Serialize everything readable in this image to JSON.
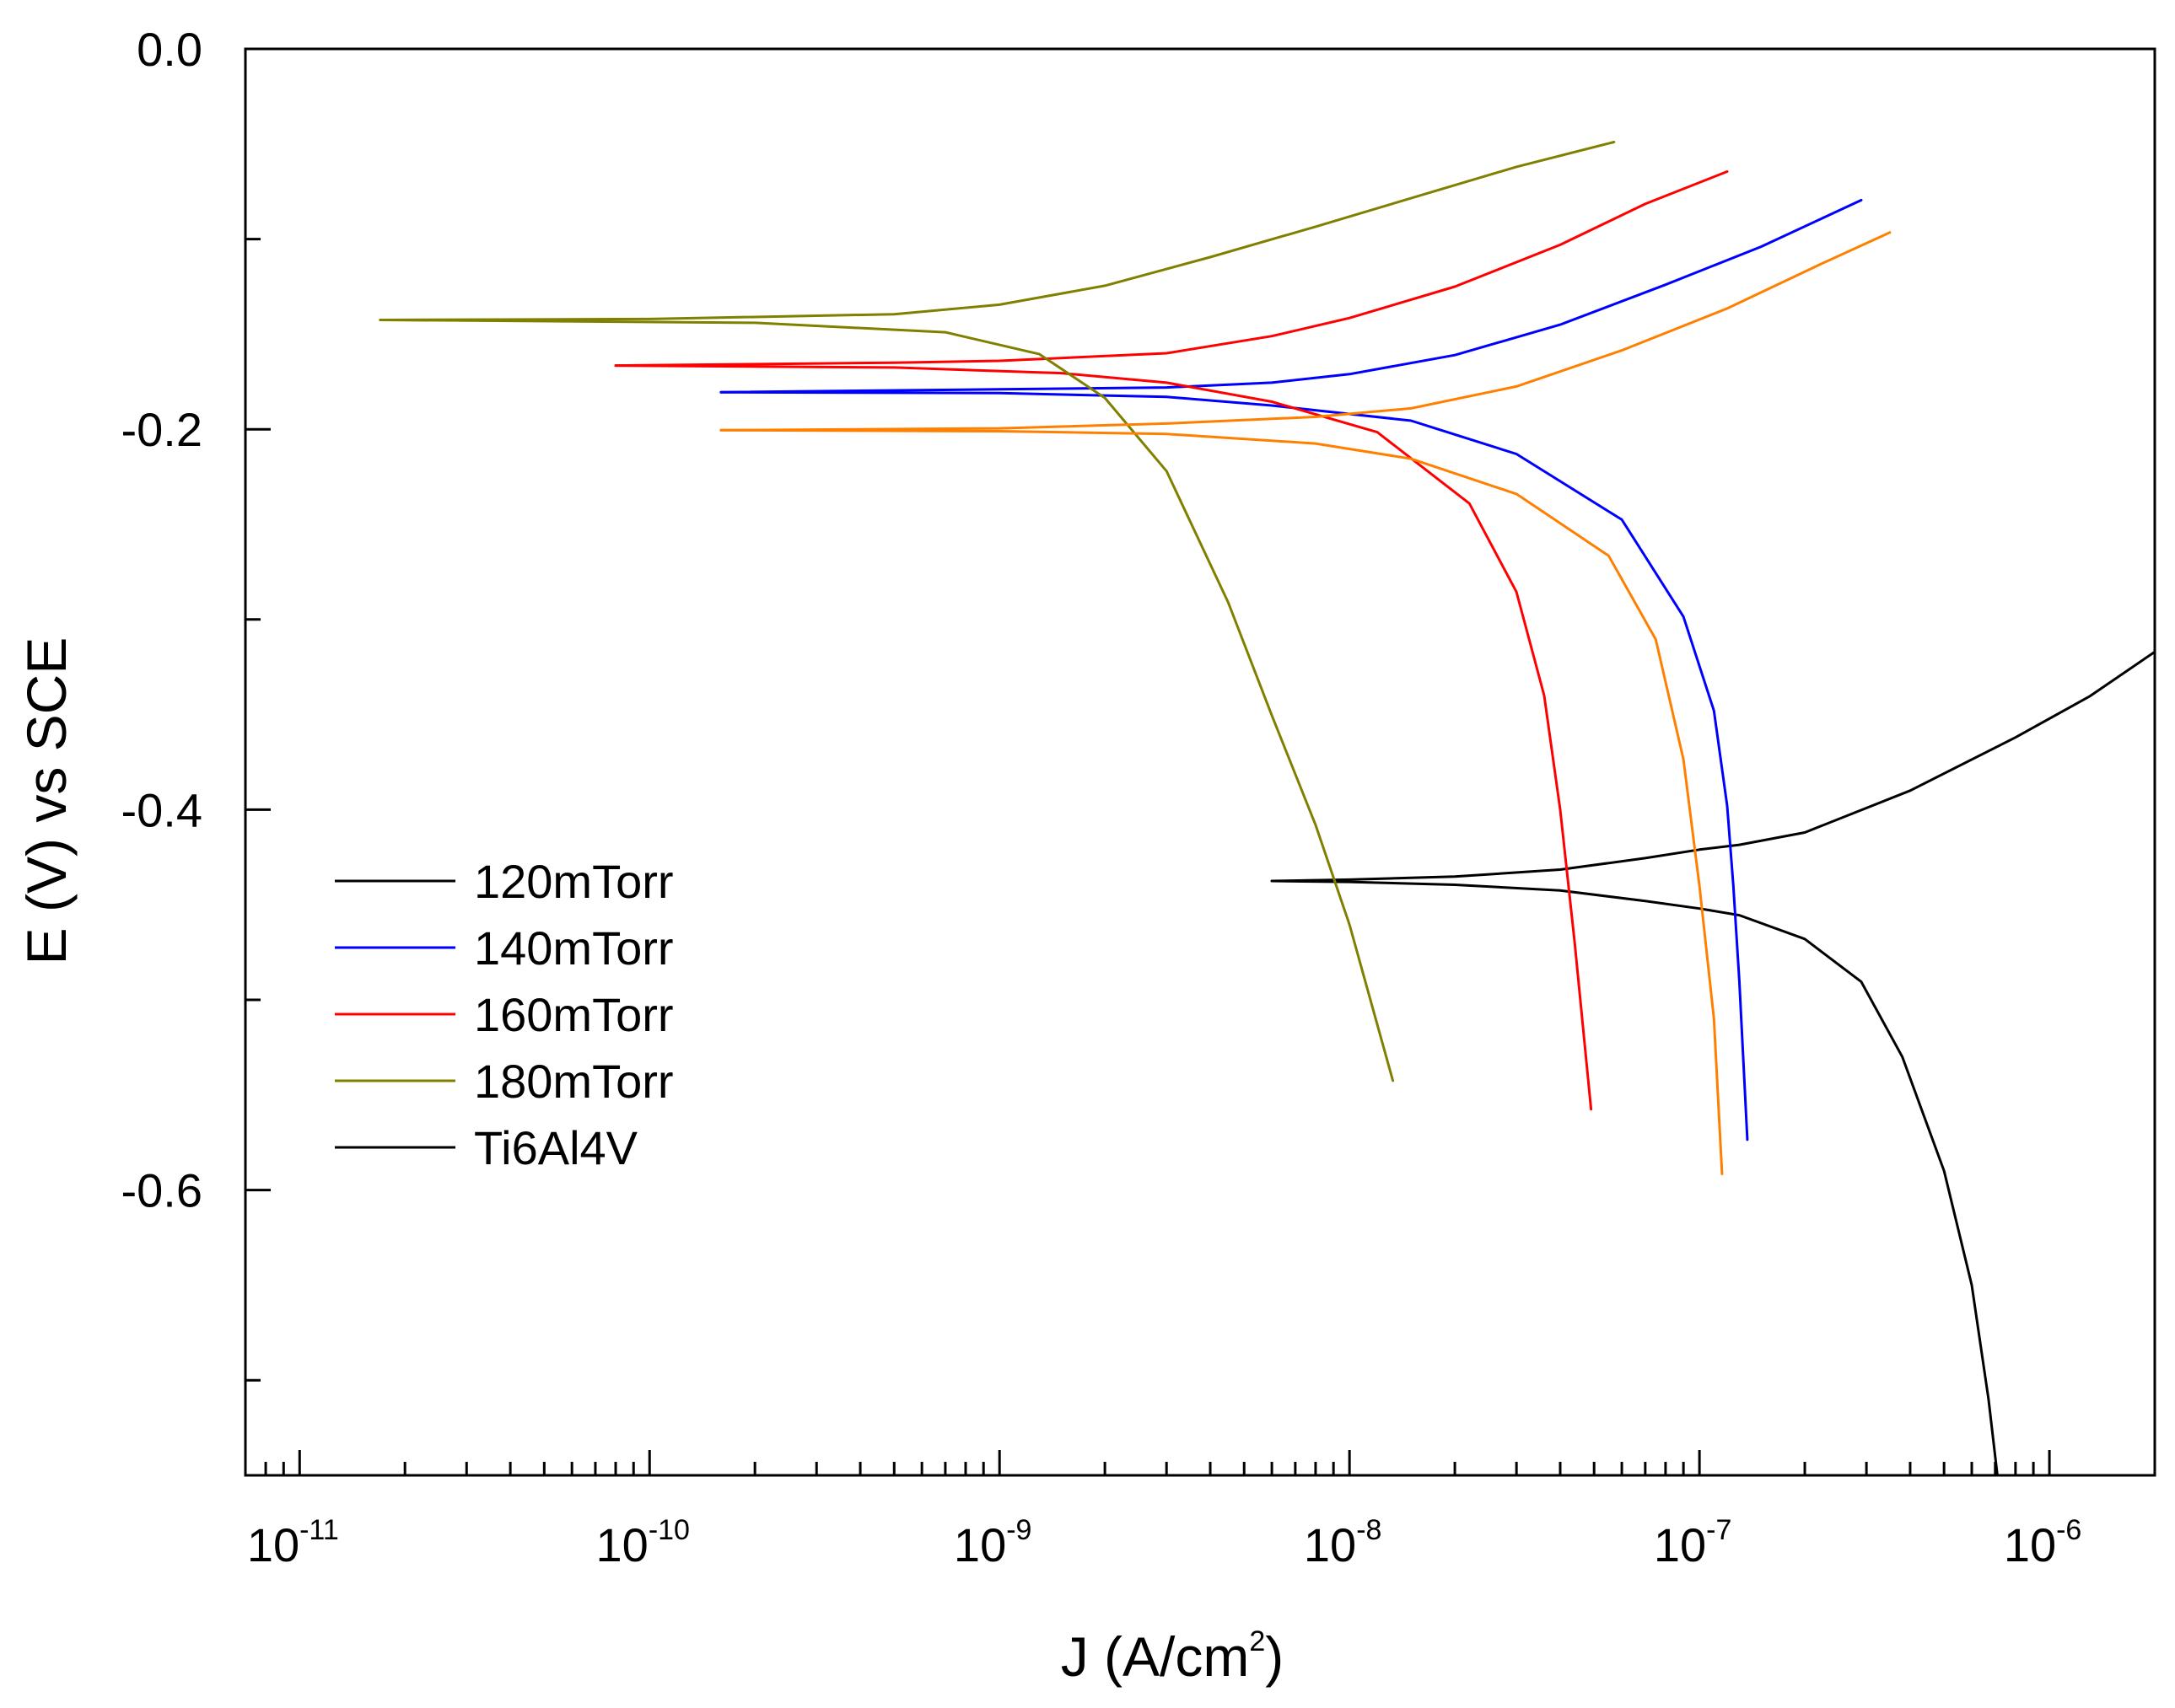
{
  "chart_data": {
    "type": "line",
    "title": "",
    "xlabel": "J (A/cm",
    "xlabel_sup": "2",
    "xlabel_suffix": ")",
    "ylabel": "E (V) vs SCE",
    "xscale": "log",
    "xlim": [
      7e-12,
      2e-06
    ],
    "ylim": [
      -0.75,
      0.0
    ],
    "grid": false,
    "legend_position": "left-middle",
    "x_ticks": [
      {
        "base": "10",
        "exp": "-11"
      },
      {
        "base": "10",
        "exp": "-10"
      },
      {
        "base": "10",
        "exp": "-9"
      },
      {
        "base": "10",
        "exp": "-8"
      },
      {
        "base": "10",
        "exp": "-7"
      },
      {
        "base": "10",
        "exp": "-6"
      }
    ],
    "y_ticks": [
      "0.0",
      "-0.2",
      "-0.4",
      "-0.6"
    ],
    "y_tick_values": [
      0.0,
      -0.2,
      -0.4,
      -0.6
    ],
    "series": [
      {
        "name": "120mTorr",
        "color": "#000000",
        "points": [
          [
            6e-09,
            -0.4375
          ],
          [
            1e-08,
            -0.4368
          ],
          [
            2e-08,
            -0.4352
          ],
          [
            4e-08,
            -0.4315
          ],
          [
            7e-08,
            -0.4255
          ],
          [
            1e-07,
            -0.421
          ],
          [
            1.3e-07,
            -0.4185
          ],
          [
            2e-07,
            -0.412
          ],
          [
            4e-07,
            -0.39
          ],
          [
            8e-07,
            -0.362
          ],
          [
            1.3e-06,
            -0.3405
          ],
          [
            2e-06,
            -0.317
          ]
        ]
      },
      {
        "name": "140mTorr",
        "color": "#0000ff",
        "points": [
          [
            1.6e-10,
            -0.1805
          ],
          [
            1e-09,
            -0.179
          ],
          [
            3e-09,
            -0.178
          ],
          [
            6e-09,
            -0.1755
          ],
          [
            1e-08,
            -0.171
          ],
          [
            2e-08,
            -0.161
          ],
          [
            4e-08,
            -0.145
          ],
          [
            8e-08,
            -0.124
          ],
          [
            1.5e-07,
            -0.104
          ],
          [
            2.9e-07,
            -0.0795
          ]
        ]
      },
      {
        "name": "160mTorr",
        "color": "#ff0000",
        "points": [
          [
            8e-11,
            -0.1665
          ],
          [
            5e-10,
            -0.165
          ],
          [
            1e-09,
            -0.164
          ],
          [
            3e-09,
            -0.16
          ],
          [
            6e-09,
            -0.151
          ],
          [
            1e-08,
            -0.1415
          ],
          [
            2e-08,
            -0.125
          ],
          [
            4e-08,
            -0.103
          ],
          [
            7e-08,
            -0.0815
          ],
          [
            1.2e-07,
            -0.0645
          ]
        ]
      },
      {
        "name": "180mTorr",
        "color": "#808000",
        "points": [
          [
            1.7e-11,
            -0.1425
          ],
          [
            1e-10,
            -0.142
          ],
          [
            5e-10,
            -0.1395
          ],
          [
            1e-09,
            -0.1345
          ],
          [
            2e-09,
            -0.1245
          ],
          [
            4e-09,
            -0.1095
          ],
          [
            8e-09,
            -0.0935
          ],
          [
            1.5e-08,
            -0.0785
          ],
          [
            3e-08,
            -0.062
          ],
          [
            5.7e-08,
            -0.049
          ]
        ]
      },
      {
        "name": "Ti6Al4V",
        "color": "#000000",
        "points": [
          [
            6e-09,
            -0.4375
          ],
          [
            1e-08,
            -0.438
          ],
          [
            2e-08,
            -0.4395
          ],
          [
            4e-08,
            -0.4425
          ],
          [
            7e-08,
            -0.448
          ],
          [
            1e-07,
            -0.452
          ],
          [
            1.3e-07,
            -0.4555
          ],
          [
            2e-07,
            -0.468
          ],
          [
            2.9e-07,
            -0.4905
          ],
          [
            3.8e-07,
            -0.53
          ],
          [
            5e-07,
            -0.59
          ],
          [
            6e-07,
            -0.65
          ],
          [
            6.7e-07,
            -0.71
          ],
          [
            7.1e-07,
            -0.75
          ]
        ]
      },
      {
        "name": "140mTorr (cathodic)",
        "color": "#0000ff",
        "legend": false,
        "points": [
          [
            1.6e-10,
            -0.1805
          ],
          [
            1e-09,
            -0.181
          ],
          [
            3e-09,
            -0.183
          ],
          [
            6e-09,
            -0.1875
          ],
          [
            1.5e-08,
            -0.1955
          ],
          [
            3e-08,
            -0.213
          ],
          [
            6e-08,
            -0.2475
          ],
          [
            9e-08,
            -0.2985
          ],
          [
            1.1e-07,
            -0.348
          ],
          [
            1.2e-07,
            -0.398
          ],
          [
            1.25e-07,
            -0.44
          ],
          [
            1.3e-07,
            -0.49
          ],
          [
            1.37e-07,
            -0.5735
          ]
        ]
      },
      {
        "name": "160mTorr (cathodic)",
        "color": "#ff0000",
        "legend": false,
        "points": [
          [
            8e-11,
            -0.1665
          ],
          [
            5e-10,
            -0.1675
          ],
          [
            1.5e-09,
            -0.1705
          ],
          [
            3e-09,
            -0.1755
          ],
          [
            6e-09,
            -0.1855
          ],
          [
            1.2e-08,
            -0.2015
          ],
          [
            2.2e-08,
            -0.239
          ],
          [
            3e-08,
            -0.2855
          ],
          [
            3.6e-08,
            -0.34
          ],
          [
            4e-08,
            -0.4
          ],
          [
            4.4e-08,
            -0.47
          ],
          [
            4.9e-08,
            -0.5575
          ]
        ]
      },
      {
        "name": "180mTorr (cathodic)",
        "color": "#808000",
        "legend": false,
        "points": [
          [
            1.7e-11,
            -0.1425
          ],
          [
            2e-10,
            -0.144
          ],
          [
            7e-10,
            -0.149
          ],
          [
            1.3e-09,
            -0.1605
          ],
          [
            2e-09,
            -0.1835
          ],
          [
            3e-09,
            -0.222
          ],
          [
            4.5e-09,
            -0.291
          ],
          [
            6e-09,
            -0.3505
          ],
          [
            8e-09,
            -0.408
          ],
          [
            1e-08,
            -0.4605
          ],
          [
            1.33e-08,
            -0.5425
          ]
        ]
      },
      {
        "name": "120mTorr (orange)",
        "color": "#ff8000",
        "legend": false,
        "points": [
          [
            1.6e-10,
            -0.2005
          ],
          [
            1e-09,
            -0.1995
          ],
          [
            3e-09,
            -0.197
          ],
          [
            8e-09,
            -0.1935
          ],
          [
            1.5e-08,
            -0.189
          ],
          [
            3e-08,
            -0.1775
          ],
          [
            6e-08,
            -0.1585
          ],
          [
            1.2e-07,
            -0.1365
          ],
          [
            2.2e-07,
            -0.1135
          ],
          [
            3.5e-07,
            -0.0965
          ]
        ]
      },
      {
        "name": "120mTorr (orange cathodic)",
        "color": "#ff8000",
        "legend": false,
        "points": [
          [
            1.6e-10,
            -0.2005
          ],
          [
            1e-09,
            -0.201
          ],
          [
            3e-09,
            -0.2025
          ],
          [
            8e-09,
            -0.2075
          ],
          [
            1.5e-08,
            -0.2155
          ],
          [
            3e-08,
            -0.234
          ],
          [
            5.5e-08,
            -0.2665
          ],
          [
            7.5e-08,
            -0.3105
          ],
          [
            9e-08,
            -0.3735
          ],
          [
            1e-07,
            -0.44
          ],
          [
            1.1e-07,
            -0.51
          ],
          [
            1.16e-07,
            -0.5915
          ]
        ]
      }
    ],
    "legend": [
      {
        "label": "120mTorr",
        "color": "#000000"
      },
      {
        "label": "140mTorr",
        "color": "#0000ff"
      },
      {
        "label": "160mTorr",
        "color": "#ff0000"
      },
      {
        "label": "180mTorr",
        "color": "#808000"
      },
      {
        "label": "Ti6Al4V",
        "color": "#000000"
      }
    ]
  }
}
